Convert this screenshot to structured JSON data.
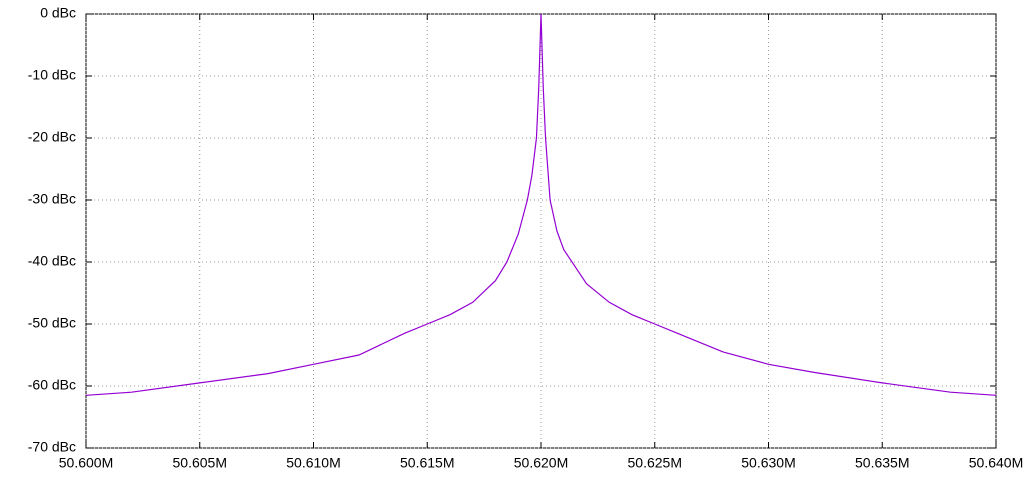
{
  "chart_data": {
    "type": "line",
    "x": [
      50.6,
      50.602,
      50.605,
      50.608,
      50.61,
      50.612,
      50.614,
      50.615,
      50.616,
      50.617,
      50.618,
      50.6185,
      50.619,
      50.6194,
      50.6196,
      50.6198,
      50.6199,
      50.62,
      50.6201,
      50.6202,
      50.6204,
      50.6207,
      50.621,
      50.622,
      50.623,
      50.624,
      50.625,
      50.626,
      50.628,
      50.63,
      50.632,
      50.635,
      50.638,
      50.64
    ],
    "series": [
      {
        "color": "#9400d3",
        "values": [
          -61.5,
          -61,
          -59.5,
          -58,
          -56.5,
          -55,
          -51.5,
          -50,
          -48.5,
          -46.5,
          -43,
          -40,
          -35.5,
          -30,
          -26,
          -20,
          -12,
          0,
          -12,
          -20,
          -30,
          -35,
          -38,
          -43.5,
          -46.5,
          -48.5,
          -50,
          -51.5,
          -54.5,
          -56.5,
          -57.8,
          -59.5,
          -61,
          -61.5
        ]
      }
    ],
    "xlim": [
      50.6,
      50.64
    ],
    "xticks": [
      {
        "value": 50.6,
        "label": "50.600M"
      },
      {
        "value": 50.605,
        "label": "50.605M"
      },
      {
        "value": 50.61,
        "label": "50.610M"
      },
      {
        "value": 50.615,
        "label": "50.615M"
      },
      {
        "value": 50.62,
        "label": "50.620M"
      },
      {
        "value": 50.625,
        "label": "50.625M"
      },
      {
        "value": 50.63,
        "label": "50.630M"
      },
      {
        "value": 50.635,
        "label": "50.635M"
      },
      {
        "value": 50.64,
        "label": "50.640M"
      }
    ],
    "ylim": [
      -70,
      0
    ],
    "yticks": [
      {
        "value": 0,
        "label": "0 dBc"
      },
      {
        "value": -10,
        "label": "-10 dBc"
      },
      {
        "value": -20,
        "label": "-20 dBc"
      },
      {
        "value": -30,
        "label": "-30 dBc"
      },
      {
        "value": -40,
        "label": "-40 dBc"
      },
      {
        "value": -50,
        "label": "-50 dBc"
      },
      {
        "value": -60,
        "label": "-60 dBc"
      },
      {
        "value": -70,
        "label": "-70 dBc"
      }
    ],
    "grid": true
  }
}
